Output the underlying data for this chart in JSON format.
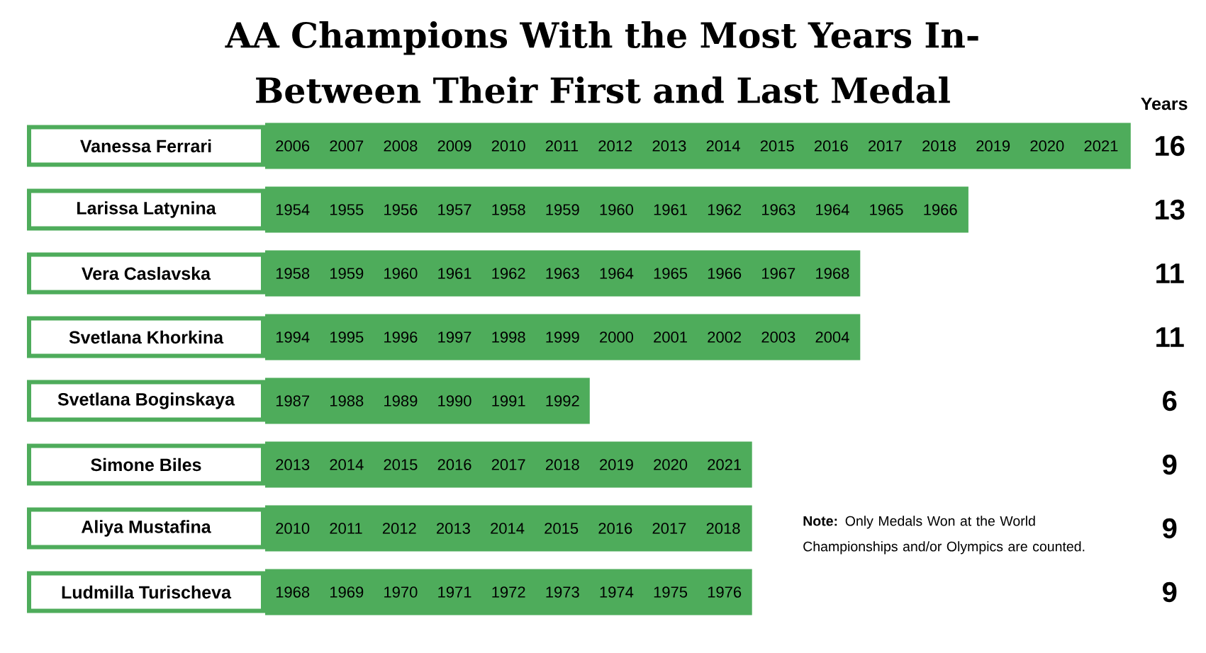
{
  "chart_data": {
    "type": "bar",
    "orientation": "horizontal",
    "title": "AA Champions With the Most Years In-Between Their First and Last Medal",
    "xlabel": "Years",
    "categories": [
      "Vanessa Ferrari",
      "Larissa Latynina",
      "Vera Caslavska",
      "Svetlana Khorkina",
      "Svetlana Boginskaya",
      "Simone Biles",
      "Aliya Mustafina",
      "Ludmilla Turischeva"
    ],
    "values": [
      16,
      13,
      11,
      11,
      6,
      9,
      9,
      9
    ],
    "color": "#4eac5b",
    "data_labels": true,
    "grid": false,
    "legend": false,
    "tick_labels": "y",
    "annotations": [
      "2006 2007 2008 2009 2010 2011 2012 2013 2014 2015 2016 2017 2018 2019 2020 2021",
      "1954 1955 1956 1957 1958 1959 1960 1961 1962 1963 1964 1965 1966",
      "1958 1959 1960 1961 1962 1963 1964 1965 1966 1967 1968",
      "1994 1995 1996 1997 1998 1999 2000 2001 2002 2003 2004",
      "1987 1988 1989 1990 1991 1992",
      "2013 2014 2015 2016 2017 2018 2019 2020 2021",
      "2010 2011 2012 2013 2014 2015 2016 2017 2018",
      "1968 1969 1970 1971 1972 1973 1974 1975 1976",
      "**Note:** Only Medals Won at the World Championships and/or Olympics are counted."
    ]
  }
}
